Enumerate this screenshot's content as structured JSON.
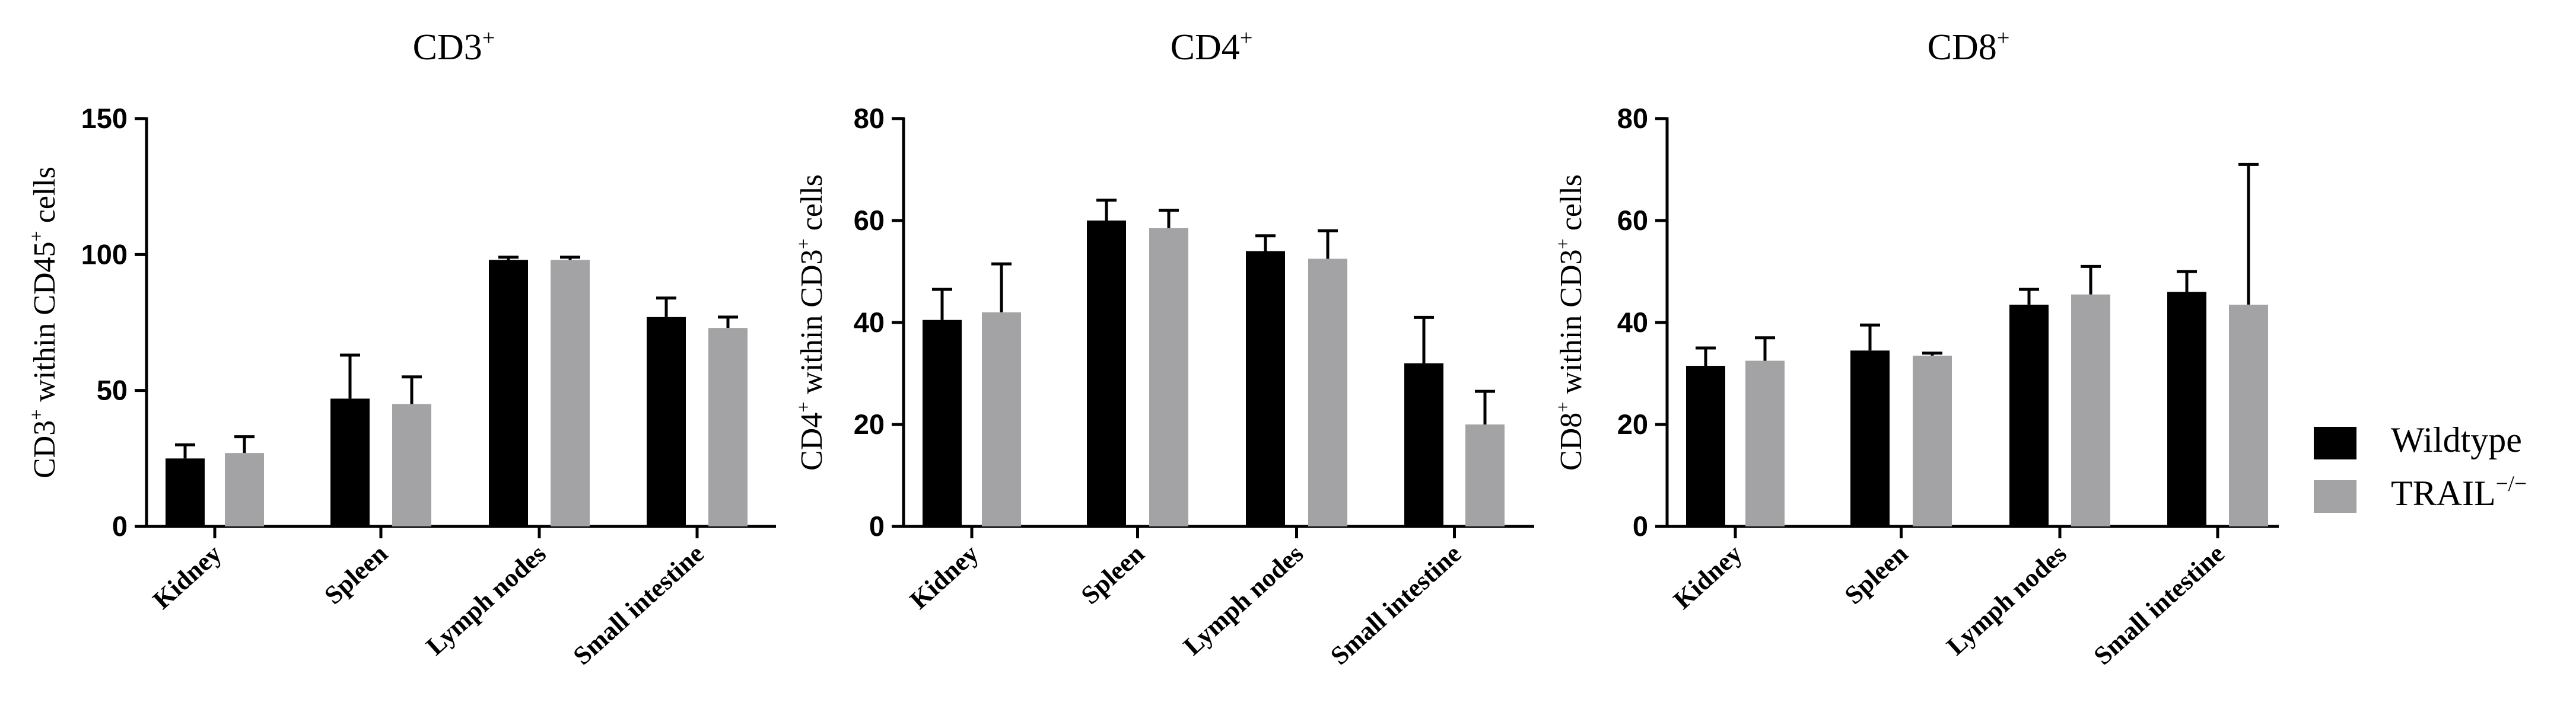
{
  "legend": [
    {
      "name": "Wildtype",
      "sup": "",
      "color": "#000000"
    },
    {
      "name": "TRAIL",
      "sup": "−/−",
      "color": "#a3a3a5"
    }
  ],
  "chart_data": [
    {
      "type": "bar",
      "title": "CD3",
      "title_sup": "+",
      "ylabel_parts": [
        [
          "CD3",
          "+"
        ],
        [
          " within CD45",
          "+"
        ],
        [
          " cells",
          ""
        ]
      ],
      "categories": [
        "Kidney",
        "Spleen",
        "Lymph nodes",
        "Small intestine"
      ],
      "ylim": [
        0,
        150
      ],
      "yticks": [
        "0",
        "50",
        "100",
        "150"
      ],
      "series": [
        {
          "name": "Wildtype",
          "values": [
            25,
            47,
            98,
            77
          ],
          "errors": [
            5,
            16,
            1,
            7
          ]
        },
        {
          "name": "TRAIL-/-",
          "values": [
            27,
            45,
            98,
            73
          ],
          "errors": [
            6,
            10,
            1,
            4
          ]
        }
      ]
    },
    {
      "type": "bar",
      "title": "CD4",
      "title_sup": "+",
      "ylabel_parts": [
        [
          "CD4",
          "+"
        ],
        [
          " within CD3",
          "+"
        ],
        [
          " cells",
          ""
        ]
      ],
      "categories": [
        "Kidney",
        "Spleen",
        "Lymph nodes",
        "Small intestine"
      ],
      "ylim": [
        0,
        80
      ],
      "yticks": [
        "0",
        "20",
        "40",
        "60",
        "80"
      ],
      "series": [
        {
          "name": "Wildtype",
          "values": [
            40.5,
            60,
            54,
            32
          ],
          "errors": [
            6,
            4,
            3,
            9
          ]
        },
        {
          "name": "TRAIL-/-",
          "values": [
            42,
            58.5,
            52.5,
            20
          ],
          "errors": [
            9.5,
            3.5,
            5.5,
            6.5
          ]
        }
      ]
    },
    {
      "type": "bar",
      "title": "CD8",
      "title_sup": "+",
      "ylabel_parts": [
        [
          "CD8",
          "+"
        ],
        [
          " within CD3",
          "+"
        ],
        [
          " cells",
          ""
        ]
      ],
      "categories": [
        "Kidney",
        "Spleen",
        "Lymph nodes",
        "Small intestine"
      ],
      "ylim": [
        0,
        80
      ],
      "yticks": [
        "0",
        "20",
        "40",
        "60",
        "80"
      ],
      "series": [
        {
          "name": "Wildtype",
          "values": [
            31.5,
            34.5,
            43.5,
            46
          ],
          "errors": [
            3.5,
            5,
            3,
            4
          ]
        },
        {
          "name": "TRAIL-/-",
          "values": [
            32.5,
            33.5,
            45.5,
            43.5
          ],
          "errors": [
            4.5,
            0.5,
            5.5,
            27.5
          ]
        }
      ]
    }
  ]
}
